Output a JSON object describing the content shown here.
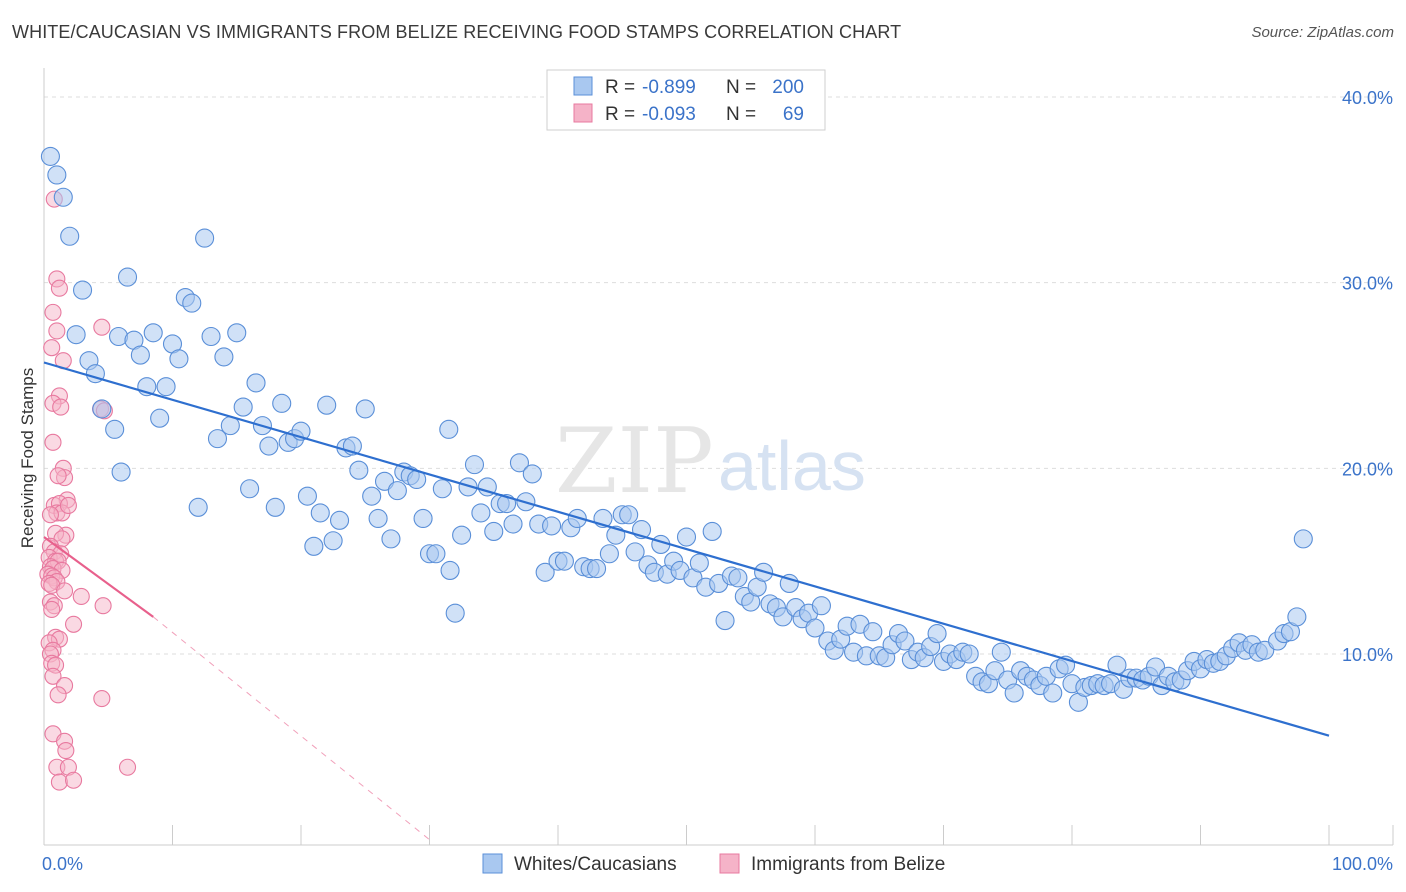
{
  "chart_data": {
    "type": "scatter",
    "title": "WHITE/CAUCASIAN VS IMMIGRANTS FROM BELIZE RECEIVING FOOD STAMPS CORRELATION CHART",
    "source": "Source: ZipAtlas.com",
    "ylabel": "Receiving Food Stamps",
    "xlabel": "",
    "xlim": [
      0,
      100
    ],
    "ylim": [
      0,
      40
    ],
    "x_tick_labels": [
      "0.0%",
      "100.0%"
    ],
    "y_ticks": [
      10,
      20,
      30,
      40
    ],
    "y_tick_labels": [
      "10.0%",
      "20.0%",
      "30.0%",
      "40.0%"
    ],
    "grid": true,
    "legend": {
      "position": "top-center",
      "entries": [
        {
          "r_label": "R =",
          "r_value": "-0.899",
          "n_label": "N =",
          "n_value": "200"
        },
        {
          "r_label": "R =",
          "r_value": "-0.093",
          "n_label": "N =",
          "n_value": "69"
        }
      ]
    },
    "watermark": {
      "zip": "ZIP",
      "atlas": "atlas"
    },
    "colors": {
      "blue_fill": "#a9c8f0",
      "blue_stroke": "#5a8fd8",
      "blue_line": "#2e6fcf",
      "pink_fill": "#f5b3c8",
      "pink_stroke": "#e8799f",
      "pink_line": "#e8608c",
      "tick": "#3b73c9",
      "grid": "#dddddd"
    },
    "series": [
      {
        "name": "Whites/Caucasians",
        "color": "#a9c8f0",
        "trend": {
          "x": [
            0,
            100
          ],
          "y": [
            25.7,
            5.6
          ]
        },
        "points": [
          [
            0.5,
            36.8
          ],
          [
            1,
            35.8
          ],
          [
            1.5,
            34.6
          ],
          [
            2,
            32.5
          ],
          [
            3,
            29.6
          ],
          [
            2.5,
            27.2
          ],
          [
            3.5,
            25.8
          ],
          [
            4,
            25.1
          ],
          [
            4.5,
            23.2
          ],
          [
            5.5,
            22.1
          ],
          [
            6,
            19.8
          ],
          [
            6.5,
            30.3
          ],
          [
            5.8,
            27.1
          ],
          [
            7,
            26.9
          ],
          [
            7.5,
            26.1
          ],
          [
            8,
            24.4
          ],
          [
            8.5,
            27.3
          ],
          [
            9,
            22.7
          ],
          [
            9.5,
            24.4
          ],
          [
            10,
            26.7
          ],
          [
            10.5,
            25.9
          ],
          [
            11,
            29.2
          ],
          [
            11.5,
            28.9
          ],
          [
            12,
            17.9
          ],
          [
            12.5,
            32.4
          ],
          [
            13,
            27.1
          ],
          [
            13.5,
            21.6
          ],
          [
            14,
            26.0
          ],
          [
            14.5,
            22.3
          ],
          [
            15,
            27.3
          ],
          [
            15.5,
            23.3
          ],
          [
            16,
            18.9
          ],
          [
            16.5,
            24.6
          ],
          [
            17,
            22.3
          ],
          [
            17.5,
            21.2
          ],
          [
            18,
            17.9
          ],
          [
            18.5,
            23.5
          ],
          [
            19,
            21.4
          ],
          [
            19.5,
            21.6
          ],
          [
            20,
            22.0
          ],
          [
            20.5,
            18.5
          ],
          [
            21,
            15.8
          ],
          [
            21.5,
            17.6
          ],
          [
            22,
            23.4
          ],
          [
            22.5,
            16.1
          ],
          [
            23,
            17.2
          ],
          [
            23.5,
            21.1
          ],
          [
            24,
            21.2
          ],
          [
            24.5,
            19.9
          ],
          [
            25,
            23.2
          ],
          [
            25.5,
            18.5
          ],
          [
            26,
            17.3
          ],
          [
            26.5,
            19.3
          ],
          [
            27,
            16.2
          ],
          [
            27.5,
            18.8
          ],
          [
            28,
            19.8
          ],
          [
            28.5,
            19.6
          ],
          [
            29,
            19.4
          ],
          [
            29.5,
            17.3
          ],
          [
            30,
            15.4
          ],
          [
            30.5,
            15.4
          ],
          [
            31,
            18.9
          ],
          [
            31.5,
            22.1
          ],
          [
            32,
            12.2
          ],
          [
            32.5,
            16.4
          ],
          [
            33,
            19.0
          ],
          [
            33.5,
            20.2
          ],
          [
            34,
            17.6
          ],
          [
            34.5,
            19.0
          ],
          [
            35,
            16.6
          ],
          [
            35.5,
            18.1
          ],
          [
            36,
            18.1
          ],
          [
            36.5,
            17.0
          ],
          [
            37,
            20.3
          ],
          [
            37.5,
            18.2
          ],
          [
            38,
            19.7
          ],
          [
            38.5,
            17.0
          ],
          [
            39,
            14.4
          ],
          [
            39.5,
            16.9
          ],
          [
            40,
            15.0
          ],
          [
            40.5,
            15.0
          ],
          [
            41,
            16.8
          ],
          [
            41.5,
            17.3
          ],
          [
            42,
            14.7
          ],
          [
            42.5,
            14.6
          ],
          [
            43,
            14.6
          ],
          [
            43.5,
            17.3
          ],
          [
            44,
            15.4
          ],
          [
            44.5,
            16.4
          ],
          [
            45,
            17.5
          ],
          [
            45.5,
            17.5
          ],
          [
            46,
            15.5
          ],
          [
            46.5,
            16.7
          ],
          [
            47,
            14.8
          ],
          [
            47.5,
            14.4
          ],
          [
            48,
            15.9
          ],
          [
            48.5,
            14.3
          ],
          [
            49,
            15.0
          ],
          [
            49.5,
            14.5
          ],
          [
            50,
            16.3
          ],
          [
            50.5,
            14.1
          ],
          [
            51,
            14.9
          ],
          [
            51.5,
            13.6
          ],
          [
            52,
            16.6
          ],
          [
            52.5,
            13.8
          ],
          [
            53,
            11.8
          ],
          [
            53.5,
            14.2
          ],
          [
            54,
            14.1
          ],
          [
            54.5,
            13.1
          ],
          [
            55,
            12.8
          ],
          [
            55.5,
            13.6
          ],
          [
            56,
            14.4
          ],
          [
            56.5,
            12.7
          ],
          [
            57,
            12.5
          ],
          [
            57.5,
            12.0
          ],
          [
            58,
            13.8
          ],
          [
            58.5,
            12.5
          ],
          [
            59,
            11.9
          ],
          [
            59.5,
            12.2
          ],
          [
            60,
            11.4
          ],
          [
            60.5,
            12.6
          ],
          [
            61,
            10.7
          ],
          [
            61.5,
            10.2
          ],
          [
            62,
            10.8
          ],
          [
            62.5,
            11.5
          ],
          [
            63,
            10.1
          ],
          [
            63.5,
            11.6
          ],
          [
            64,
            9.9
          ],
          [
            64.5,
            11.2
          ],
          [
            65,
            9.9
          ],
          [
            65.5,
            9.8
          ],
          [
            66,
            10.5
          ],
          [
            66.5,
            11.1
          ],
          [
            67,
            10.7
          ],
          [
            67.5,
            9.7
          ],
          [
            68,
            10.1
          ],
          [
            68.5,
            9.8
          ],
          [
            69,
            10.4
          ],
          [
            69.5,
            11.1
          ],
          [
            70,
            9.6
          ],
          [
            70.5,
            10.0
          ],
          [
            71,
            9.7
          ],
          [
            71.5,
            10.1
          ],
          [
            72,
            10.0
          ],
          [
            72.5,
            8.8
          ],
          [
            73,
            8.5
          ],
          [
            73.5,
            8.4
          ],
          [
            74,
            9.1
          ],
          [
            74.5,
            10.1
          ],
          [
            75,
            8.6
          ],
          [
            75.5,
            7.9
          ],
          [
            76,
            9.1
          ],
          [
            76.5,
            8.8
          ],
          [
            77,
            8.6
          ],
          [
            77.5,
            8.3
          ],
          [
            78,
            8.8
          ],
          [
            78.5,
            7.9
          ],
          [
            79,
            9.2
          ],
          [
            79.5,
            9.4
          ],
          [
            80,
            8.4
          ],
          [
            80.5,
            7.4
          ],
          [
            81,
            8.2
          ],
          [
            81.5,
            8.3
          ],
          [
            82,
            8.4
          ],
          [
            82.5,
            8.3
          ],
          [
            83,
            8.4
          ],
          [
            83.5,
            9.4
          ],
          [
            84,
            8.1
          ],
          [
            84.5,
            8.7
          ],
          [
            85,
            8.7
          ],
          [
            85.5,
            8.6
          ],
          [
            86,
            8.8
          ],
          [
            86.5,
            9.3
          ],
          [
            87,
            8.3
          ],
          [
            87.5,
            8.8
          ],
          [
            88,
            8.5
          ],
          [
            88.5,
            8.6
          ],
          [
            89,
            9.1
          ],
          [
            89.5,
            9.6
          ],
          [
            90,
            9.2
          ],
          [
            90.5,
            9.7
          ],
          [
            91,
            9.5
          ],
          [
            91.5,
            9.6
          ],
          [
            92,
            9.9
          ],
          [
            92.5,
            10.3
          ],
          [
            93,
            10.6
          ],
          [
            93.5,
            10.2
          ],
          [
            94,
            10.5
          ],
          [
            94.5,
            10.1
          ],
          [
            95,
            10.2
          ],
          [
            96,
            10.7
          ],
          [
            96.5,
            11.1
          ],
          [
            97,
            11.2
          ],
          [
            97.5,
            12.0
          ],
          [
            98,
            16.2
          ],
          [
            31.6,
            14.5
          ]
        ]
      },
      {
        "name": "Immigrants from Belize",
        "color": "#f5b3c8",
        "trend": {
          "x": [
            0,
            8.5
          ],
          "y": [
            16.3,
            12.0
          ]
        },
        "trend_ext": {
          "x": [
            8.5,
            30
          ],
          "y": [
            12.0,
            0
          ]
        },
        "points": [
          [
            0.8,
            34.5
          ],
          [
            1,
            30.2
          ],
          [
            1.2,
            29.7
          ],
          [
            0.7,
            28.4
          ],
          [
            1,
            27.4
          ],
          [
            1.5,
            25.8
          ],
          [
            0.6,
            26.5
          ],
          [
            1.2,
            23.9
          ],
          [
            0.7,
            23.5
          ],
          [
            1.3,
            23.3
          ],
          [
            4.5,
            27.6
          ],
          [
            4.4,
            23.2
          ],
          [
            4.7,
            23.1
          ],
          [
            0.7,
            21.4
          ],
          [
            1.5,
            20.0
          ],
          [
            1.6,
            19.5
          ],
          [
            1.1,
            19.6
          ],
          [
            1.8,
            18.3
          ],
          [
            0.8,
            18.0
          ],
          [
            1.2,
            18.1
          ],
          [
            1.0,
            17.6
          ],
          [
            1.4,
            17.6
          ],
          [
            1.9,
            18.0
          ],
          [
            0.5,
            17.5
          ],
          [
            1.7,
            16.4
          ],
          [
            0.9,
            16.5
          ],
          [
            1.4,
            16.2
          ],
          [
            0.5,
            15.8
          ],
          [
            0.8,
            15.5
          ],
          [
            1.3,
            15.4
          ],
          [
            0.4,
            15.2
          ],
          [
            0.9,
            15.0
          ],
          [
            1.1,
            15.0
          ],
          [
            0.5,
            14.7
          ],
          [
            0.7,
            14.6
          ],
          [
            1.4,
            14.5
          ],
          [
            0.3,
            14.3
          ],
          [
            0.6,
            14.2
          ],
          [
            0.8,
            14.1
          ],
          [
            1.0,
            13.9
          ],
          [
            0.4,
            13.8
          ],
          [
            0.6,
            13.7
          ],
          [
            1.6,
            13.4
          ],
          [
            2.9,
            13.1
          ],
          [
            0.5,
            12.8
          ],
          [
            0.8,
            12.6
          ],
          [
            4.6,
            12.6
          ],
          [
            0.6,
            12.4
          ],
          [
            2.3,
            11.6
          ],
          [
            0.9,
            10.9
          ],
          [
            1.2,
            10.8
          ],
          [
            0.4,
            10.6
          ],
          [
            0.7,
            10.2
          ],
          [
            0.5,
            10.0
          ],
          [
            0.6,
            9.5
          ],
          [
            0.9,
            9.4
          ],
          [
            0.7,
            8.8
          ],
          [
            1.6,
            8.3
          ],
          [
            1.1,
            7.8
          ],
          [
            4.5,
            7.6
          ],
          [
            0.7,
            5.7
          ],
          [
            1.6,
            5.3
          ],
          [
            1.7,
            4.8
          ],
          [
            1.0,
            3.9
          ],
          [
            1.9,
            3.9
          ],
          [
            6.5,
            3.9
          ],
          [
            1.2,
            3.1
          ],
          [
            2.3,
            3.2
          ]
        ]
      }
    ]
  }
}
